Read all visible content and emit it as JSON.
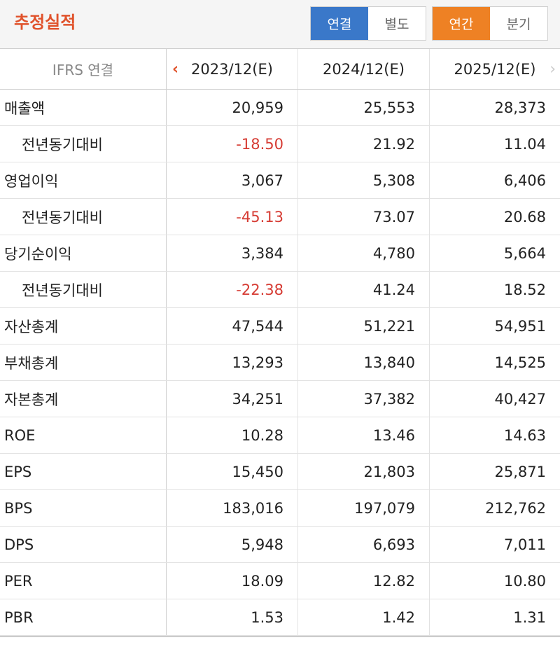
{
  "title": "추정실적",
  "toggles": {
    "basis": {
      "consolidated": "연결",
      "separate": "별도"
    },
    "period": {
      "annual": "연간",
      "quarterly": "분기"
    }
  },
  "table": {
    "header": {
      "label": "IFRS 연결",
      "columns": [
        "2023/12(E)",
        "2024/12(E)",
        "2025/12(E)"
      ]
    },
    "rows": [
      {
        "label": "매출액",
        "values": [
          "20,959",
          "25,553",
          "28,373"
        ]
      },
      {
        "label": "전년동기대비",
        "values": [
          "-18.50",
          "21.92",
          "11.04"
        ]
      },
      {
        "label": "영업이익",
        "values": [
          "3,067",
          "5,308",
          "6,406"
        ]
      },
      {
        "label": "전년동기대비",
        "values": [
          "-45.13",
          "73.07",
          "20.68"
        ]
      },
      {
        "label": "당기순이익",
        "values": [
          "3,384",
          "4,780",
          "5,664"
        ]
      },
      {
        "label": "전년동기대비",
        "values": [
          "-22.38",
          "41.24",
          "18.52"
        ]
      },
      {
        "label": "자산총계",
        "values": [
          "47,544",
          "51,221",
          "54,951"
        ]
      },
      {
        "label": "부채총계",
        "values": [
          "13,293",
          "13,840",
          "14,525"
        ]
      },
      {
        "label": "자본총계",
        "values": [
          "34,251",
          "37,382",
          "40,427"
        ]
      },
      {
        "label": "ROE",
        "values": [
          "10.28",
          "13.46",
          "14.63"
        ]
      },
      {
        "label": "EPS",
        "values": [
          "15,450",
          "21,803",
          "25,871"
        ]
      },
      {
        "label": "BPS",
        "values": [
          "183,016",
          "197,079",
          "212,762"
        ]
      },
      {
        "label": "DPS",
        "values": [
          "5,948",
          "6,693",
          "7,011"
        ]
      },
      {
        "label": "PER",
        "values": [
          "18.09",
          "12.82",
          "10.80"
        ]
      },
      {
        "label": "PBR",
        "values": [
          "1.53",
          "1.42",
          "1.31"
        ]
      }
    ]
  },
  "colors": {
    "title": "#e0522b",
    "active_basis": "#3a78c9",
    "active_period": "#ee8124",
    "negative": "#d63c34"
  },
  "icons": {
    "prev": "chevron-left-icon",
    "next": "chevron-right-icon"
  }
}
